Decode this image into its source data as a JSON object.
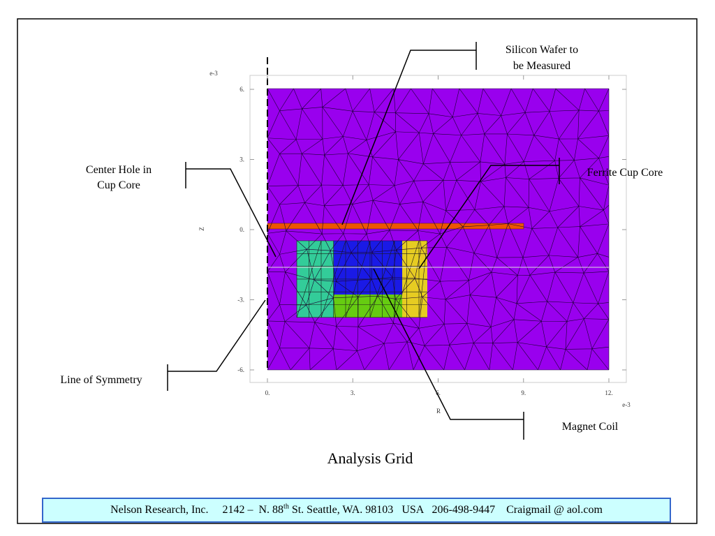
{
  "callouts": [
    {
      "lines": [
        "Silicon Wafer to",
        "be Measured"
      ]
    },
    {
      "lines": [
        "Center Hole in",
        "Cup Core"
      ]
    },
    {
      "lines": [
        "Ferrite Cup Core"
      ]
    },
    {
      "lines": [
        "Line of Symmetry"
      ]
    },
    {
      "lines": [
        "Magnet Coil"
      ]
    }
  ],
  "axes": {
    "z_label": "Z",
    "r_label": "R",
    "z_exponent": "e-3",
    "r_exponent": "e-3",
    "z_ticks": [
      "6.",
      "3.",
      "0.",
      "-3.",
      "-6."
    ],
    "r_ticks": [
      "0.",
      "3.",
      "6.",
      "9.",
      "12."
    ]
  },
  "caption": "Analysis Grid",
  "footer": {
    "company": "Nelson Research, Inc.",
    "street_number": "2142 –  N. 88",
    "ordinal": "th",
    "street": "St. Seattle, WA. 98103",
    "country": "USA",
    "phone": "206-498-9447",
    "email": "Craigmail @ aol.com"
  }
}
